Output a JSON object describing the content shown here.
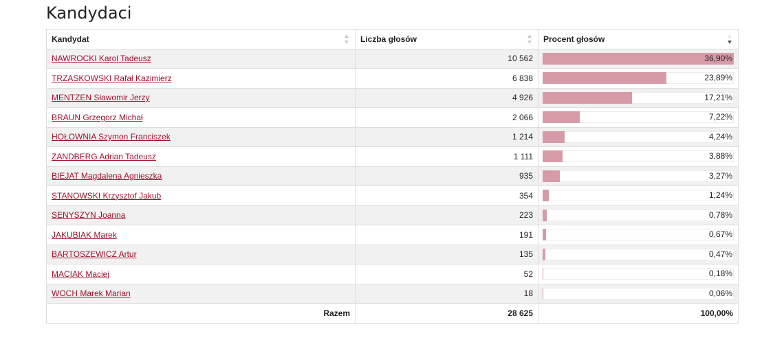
{
  "page": {
    "title": "Kandydaci"
  },
  "table": {
    "headers": {
      "candidate": "Kandydat",
      "votes": "Liczba głosów",
      "percent": "Procent głosów"
    },
    "bar_color": "#d79aa7",
    "rows": [
      {
        "name": "NAWROCKI Karol Tadeusz",
        "votes": "10 562",
        "percent": "36,90%",
        "share": 36.9
      },
      {
        "name": "TRZASKOWSKI Rafał Kazimierz",
        "votes": "6 838",
        "percent": "23,89%",
        "share": 23.89
      },
      {
        "name": "MENTZEN Sławomir Jerzy",
        "votes": "4 926",
        "percent": "17,21%",
        "share": 17.21
      },
      {
        "name": "BRAUN Grzegorz Michał",
        "votes": "2 066",
        "percent": "7,22%",
        "share": 7.22
      },
      {
        "name": "HOŁOWNIA Szymon Franciszek",
        "votes": "1 214",
        "percent": "4,24%",
        "share": 4.24
      },
      {
        "name": "ZANDBERG Adrian Tadeusz",
        "votes": "1 111",
        "percent": "3,88%",
        "share": 3.88
      },
      {
        "name": "BIEJAT Magdalena Agnieszka",
        "votes": "935",
        "percent": "3,27%",
        "share": 3.27
      },
      {
        "name": "STANOWSKI Krzysztof Jakub",
        "votes": "354",
        "percent": "1,24%",
        "share": 1.24
      },
      {
        "name": "SENYSZYN Joanna",
        "votes": "223",
        "percent": "0,78%",
        "share": 0.78
      },
      {
        "name": "JAKUBIAK Marek",
        "votes": "191",
        "percent": "0,67%",
        "share": 0.67
      },
      {
        "name": "BARTOSZEWICZ Artur",
        "votes": "135",
        "percent": "0,47%",
        "share": 0.47
      },
      {
        "name": "MACIAK Maciej",
        "votes": "52",
        "percent": "0,18%",
        "share": 0.18
      },
      {
        "name": "WOCH Marek Marian",
        "votes": "18",
        "percent": "0,06%",
        "share": 0.06
      }
    ],
    "footer": {
      "label": "Razem",
      "votes": "28 625",
      "percent": "100,00%"
    }
  }
}
